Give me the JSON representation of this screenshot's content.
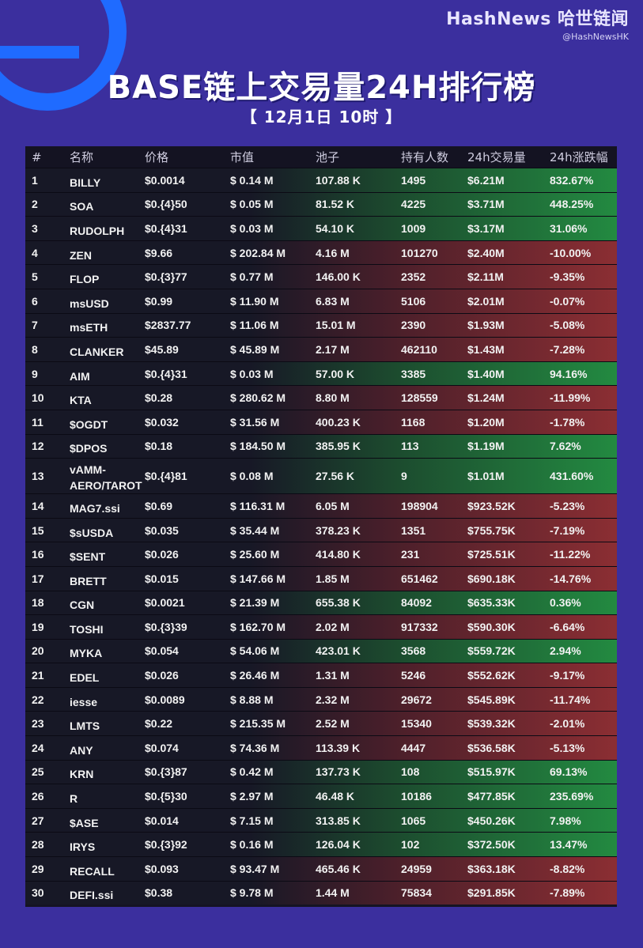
{
  "brand": {
    "name": "HashNews 哈世链闻",
    "handle": "@HashNewsHK"
  },
  "title": "BASE链上交易量24H排行榜",
  "subtitle": "【 12月1日 10时 】",
  "columns": [
    "#",
    "名称",
    "价格",
    "市值",
    "池子",
    "持有人数",
    "24h交易量",
    "24h涨跌幅"
  ],
  "rows": [
    {
      "rank": "1",
      "name": "BILLY",
      "price": "$0.0014",
      "mcap": "$ 0.14 M",
      "pool": "107.88 K",
      "holders": "1495",
      "volume": "$6.21M",
      "change": "832.67%",
      "trend": "up"
    },
    {
      "rank": "2",
      "name": "SOA",
      "price": "$0.{4}50",
      "mcap": "$ 0.05 M",
      "pool": "81.52 K",
      "holders": "4225",
      "volume": "$3.71M",
      "change": "448.25%",
      "trend": "up"
    },
    {
      "rank": "3",
      "name": "RUDOLPH",
      "price": "$0.{4}31",
      "mcap": "$ 0.03 M",
      "pool": "54.10 K",
      "holders": "1009",
      "volume": "$3.17M",
      "change": "31.06%",
      "trend": "up"
    },
    {
      "rank": "4",
      "name": "ZEN",
      "price": "$9.66",
      "mcap": "$ 202.84 M",
      "pool": "4.16 M",
      "holders": "101270",
      "volume": "$2.40M",
      "change": "-10.00%",
      "trend": "down"
    },
    {
      "rank": "5",
      "name": "FLOP",
      "price": "$0.{3}77",
      "mcap": "$ 0.77 M",
      "pool": "146.00 K",
      "holders": "2352",
      "volume": "$2.11M",
      "change": "-9.35%",
      "trend": "down"
    },
    {
      "rank": "6",
      "name": "msUSD",
      "price": "$0.99",
      "mcap": "$ 11.90 M",
      "pool": "6.83 M",
      "holders": "5106",
      "volume": "$2.01M",
      "change": "-0.07%",
      "trend": "down"
    },
    {
      "rank": "7",
      "name": "msETH",
      "price": "$2837.77",
      "mcap": "$ 11.06 M",
      "pool": "15.01 M",
      "holders": "2390",
      "volume": "$1.93M",
      "change": "-5.08%",
      "trend": "down"
    },
    {
      "rank": "8",
      "name": "CLANKER",
      "price": "$45.89",
      "mcap": "$ 45.89 M",
      "pool": "2.17 M",
      "holders": "462110",
      "volume": "$1.43M",
      "change": "-7.28%",
      "trend": "down"
    },
    {
      "rank": "9",
      "name": "AIM",
      "price": "$0.{4}31",
      "mcap": "$ 0.03 M",
      "pool": "57.00 K",
      "holders": "3385",
      "volume": "$1.40M",
      "change": "94.16%",
      "trend": "up"
    },
    {
      "rank": "10",
      "name": "KTA",
      "price": "$0.28",
      "mcap": "$ 280.62 M",
      "pool": "8.80 M",
      "holders": "128559",
      "volume": "$1.24M",
      "change": "-11.99%",
      "trend": "down"
    },
    {
      "rank": "11",
      "name": "$OGDT",
      "price": "$0.032",
      "mcap": "$ 31.56 M",
      "pool": "400.23 K",
      "holders": "1168",
      "volume": "$1.20M",
      "change": "-1.78%",
      "trend": "down"
    },
    {
      "rank": "12",
      "name": "$DPOS",
      "price": "$0.18",
      "mcap": "$ 184.50 M",
      "pool": "385.95 K",
      "holders": "113",
      "volume": "$1.19M",
      "change": "7.62%",
      "trend": "up"
    },
    {
      "rank": "13",
      "name": "vAMM-AERO/TAROT",
      "price": "$0.{4}81",
      "mcap": "$ 0.08 M",
      "pool": "27.56 K",
      "holders": "9",
      "volume": "$1.01M",
      "change": "431.60%",
      "trend": "up",
      "tall": true
    },
    {
      "rank": "14",
      "name": "MAG7.ssi",
      "price": "$0.69",
      "mcap": "$ 116.31 M",
      "pool": "6.05 M",
      "holders": "198904",
      "volume": "$923.52K",
      "change": "-5.23%",
      "trend": "down"
    },
    {
      "rank": "15",
      "name": "$sUSDA",
      "price": "$0.035",
      "mcap": "$ 35.44 M",
      "pool": "378.23 K",
      "holders": "1351",
      "volume": "$755.75K",
      "change": "-7.19%",
      "trend": "down"
    },
    {
      "rank": "16",
      "name": "$SENT",
      "price": "$0.026",
      "mcap": "$ 25.60 M",
      "pool": "414.80 K",
      "holders": "231",
      "volume": "$725.51K",
      "change": "-11.22%",
      "trend": "down"
    },
    {
      "rank": "17",
      "name": "BRETT",
      "price": "$0.015",
      "mcap": "$ 147.66 M",
      "pool": "1.85 M",
      "holders": "651462",
      "volume": "$690.18K",
      "change": "-14.76%",
      "trend": "down"
    },
    {
      "rank": "18",
      "name": "CGN",
      "price": "$0.0021",
      "mcap": "$ 21.39 M",
      "pool": "655.38 K",
      "holders": "84092",
      "volume": "$635.33K",
      "change": "0.36%",
      "trend": "up"
    },
    {
      "rank": "19",
      "name": "TOSHI",
      "price": "$0.{3}39",
      "mcap": "$ 162.70 M",
      "pool": "2.02 M",
      "holders": "917332",
      "volume": "$590.30K",
      "change": "-6.64%",
      "trend": "down"
    },
    {
      "rank": "20",
      "name": "MYKA",
      "price": "$0.054",
      "mcap": "$ 54.06 M",
      "pool": "423.01 K",
      "holders": "3568",
      "volume": "$559.72K",
      "change": "2.94%",
      "trend": "up"
    },
    {
      "rank": "21",
      "name": "EDEL",
      "price": "$0.026",
      "mcap": "$ 26.46 M",
      "pool": "1.31 M",
      "holders": "5246",
      "volume": "$552.62K",
      "change": "-9.17%",
      "trend": "down"
    },
    {
      "rank": "22",
      "name": "iesse",
      "price": "$0.0089",
      "mcap": "$ 8.88 M",
      "pool": "2.32 M",
      "holders": "29672",
      "volume": "$545.89K",
      "change": "-11.74%",
      "trend": "down"
    },
    {
      "rank": "23",
      "name": "LMTS",
      "price": "$0.22",
      "mcap": "$ 215.35 M",
      "pool": "2.52 M",
      "holders": "15340",
      "volume": "$539.32K",
      "change": "-2.01%",
      "trend": "down"
    },
    {
      "rank": "24",
      "name": "ANY",
      "price": "$0.074",
      "mcap": "$ 74.36 M",
      "pool": "113.39 K",
      "holders": "4447",
      "volume": "$536.58K",
      "change": "-5.13%",
      "trend": "down"
    },
    {
      "rank": "25",
      "name": "KRN",
      "price": "$0.{3}87",
      "mcap": "$ 0.42 M",
      "pool": "137.73 K",
      "holders": "108",
      "volume": "$515.97K",
      "change": "69.13%",
      "trend": "up"
    },
    {
      "rank": "26",
      "name": "R",
      "price": "$0.{5}30",
      "mcap": "$ 2.97 M",
      "pool": "46.48 K",
      "holders": "10186",
      "volume": "$477.85K",
      "change": "235.69%",
      "trend": "up"
    },
    {
      "rank": "27",
      "name": "$ASE",
      "price": "$0.014",
      "mcap": "$ 7.15 M",
      "pool": "313.85 K",
      "holders": "1065",
      "volume": "$450.26K",
      "change": "7.98%",
      "trend": "up"
    },
    {
      "rank": "28",
      "name": "IRYS",
      "price": "$0.{3}92",
      "mcap": "$ 0.16 M",
      "pool": "126.04 K",
      "holders": "102",
      "volume": "$372.50K",
      "change": "13.47%",
      "trend": "up"
    },
    {
      "rank": "29",
      "name": "RECALL",
      "price": "$0.093",
      "mcap": "$ 93.47 M",
      "pool": "465.46 K",
      "holders": "24959",
      "volume": "$363.18K",
      "change": "-8.82%",
      "trend": "down"
    },
    {
      "rank": "30",
      "name": "DEFI.ssi",
      "price": "$0.38",
      "mcap": "$ 9.78 M",
      "pool": "1.44 M",
      "holders": "75834",
      "volume": "$291.85K",
      "change": "-7.89%",
      "trend": "down"
    }
  ]
}
